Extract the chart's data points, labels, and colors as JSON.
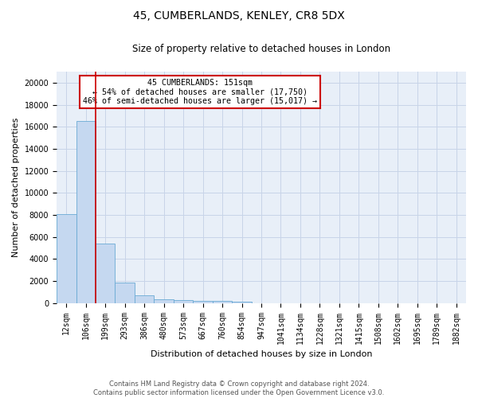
{
  "title": "45, CUMBERLANDS, KENLEY, CR8 5DX",
  "subtitle": "Size of property relative to detached houses in London",
  "xlabel": "Distribution of detached houses by size in London",
  "ylabel": "Number of detached properties",
  "footer_line1": "Contains HM Land Registry data © Crown copyright and database right 2024.",
  "footer_line2": "Contains public sector information licensed under the Open Government Licence v3.0.",
  "annotation_line1": "45 CUMBERLANDS: 151sqm",
  "annotation_line2": "← 54% of detached houses are smaller (17,750)",
  "annotation_line3": "46% of semi-detached houses are larger (15,017) →",
  "bar_color": "#c5d8f0",
  "bar_edge_color": "#6aaad4",
  "red_line_color": "#cc0000",
  "annotation_box_color": "#cc0000",
  "grid_color": "#c8d4e8",
  "background_color": "#e8eff8",
  "categories": [
    "12sqm",
    "106sqm",
    "199sqm",
    "293sqm",
    "386sqm",
    "480sqm",
    "573sqm",
    "667sqm",
    "760sqm",
    "854sqm",
    "947sqm",
    "1041sqm",
    "1134sqm",
    "1228sqm",
    "1321sqm",
    "1415sqm",
    "1508sqm",
    "1602sqm",
    "1695sqm",
    "1789sqm",
    "1882sqm"
  ],
  "values": [
    8050,
    16500,
    5380,
    1850,
    700,
    350,
    260,
    200,
    175,
    150,
    0,
    0,
    0,
    0,
    0,
    0,
    0,
    0,
    0,
    0,
    0
  ],
  "ylim": [
    0,
    21000
  ],
  "yticks": [
    0,
    2000,
    4000,
    6000,
    8000,
    10000,
    12000,
    14000,
    16000,
    18000,
    20000
  ],
  "red_line_x": 1.5,
  "title_fontsize": 10,
  "subtitle_fontsize": 8.5,
  "ylabel_fontsize": 8,
  "xlabel_fontsize": 8,
  "tick_fontsize": 7,
  "footer_fontsize": 6
}
